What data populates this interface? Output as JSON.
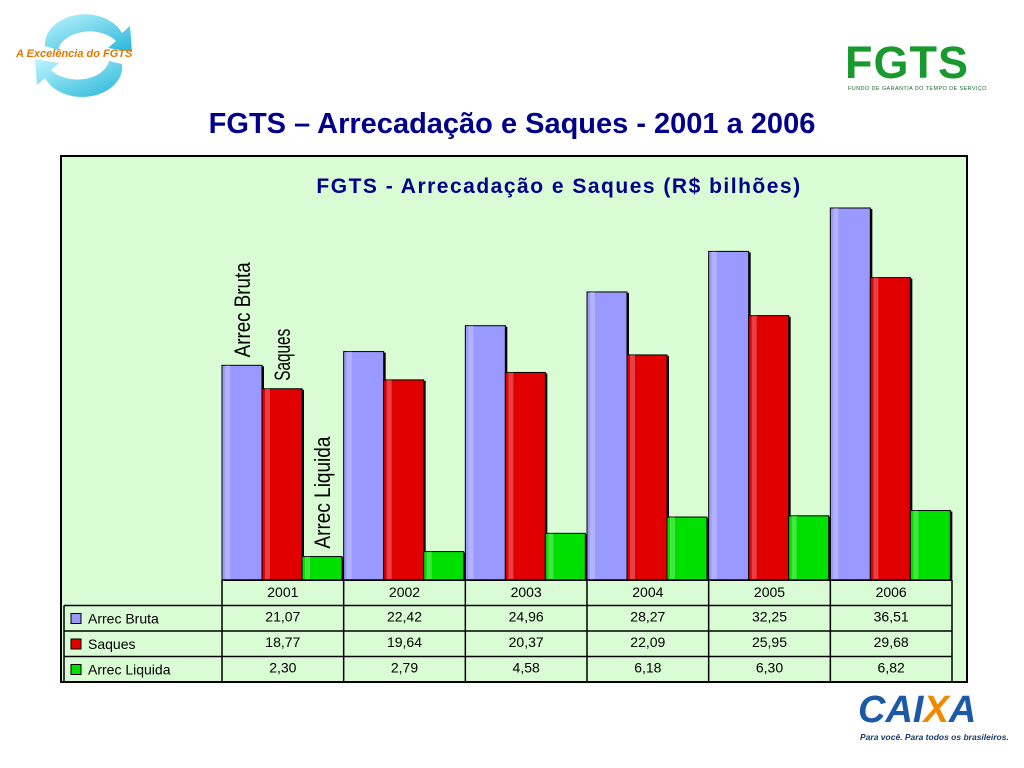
{
  "slide": {
    "title": "FGTS – Arrecadação e Saques - 2001 a 2006"
  },
  "logos": {
    "top_left_text": "A Excelência do FGTS",
    "fgts_word": "FGTS",
    "fgts_subtitle": "FUNDO DE GARANTIA DO TEMPO DE SERVIÇO",
    "caixa_word_1": "CAI",
    "caixa_word_2": "X",
    "caixa_word_3": "A",
    "caixa_slogan": "Para você. Para todos os brasileiros."
  },
  "colors": {
    "panel_bg": "#d9fcd4",
    "title_color": "#00008b",
    "series": [
      "#9999ff",
      "#e00000",
      "#00e000"
    ]
  },
  "chart_data": {
    "type": "bar",
    "title": "FGTS - Arrecadação e Saques (R$ bilhões)",
    "categories": [
      "2001",
      "2002",
      "2003",
      "2004",
      "2005",
      "2006"
    ],
    "series": [
      {
        "name": "Arrec Bruta",
        "values": [
          21.07,
          22.42,
          24.96,
          28.27,
          32.25,
          36.51
        ],
        "labels": [
          "21,07",
          "22,42",
          "24,96",
          "28,27",
          "32,25",
          "36,51"
        ],
        "color": "#9999ff"
      },
      {
        "name": "Saques",
        "values": [
          18.77,
          19.64,
          20.37,
          22.09,
          25.95,
          29.68
        ],
        "labels": [
          "18,77",
          "19,64",
          "20,37",
          "22,09",
          "25,95",
          "29,68"
        ],
        "color": "#e00000"
      },
      {
        "name": "Arrec Liquida",
        "values": [
          2.3,
          2.79,
          4.58,
          6.18,
          6.3,
          6.82
        ],
        "labels": [
          "2,30",
          "2,79",
          "4,58",
          "6,18",
          "6,30",
          "6,82"
        ],
        "color": "#00e000"
      }
    ],
    "ylim": [
      0,
      36.51
    ],
    "grid": false,
    "legend": "data-table-left",
    "annotations": [
      "Arrec Bruta",
      "Saques",
      "Arrec Liquida"
    ]
  }
}
